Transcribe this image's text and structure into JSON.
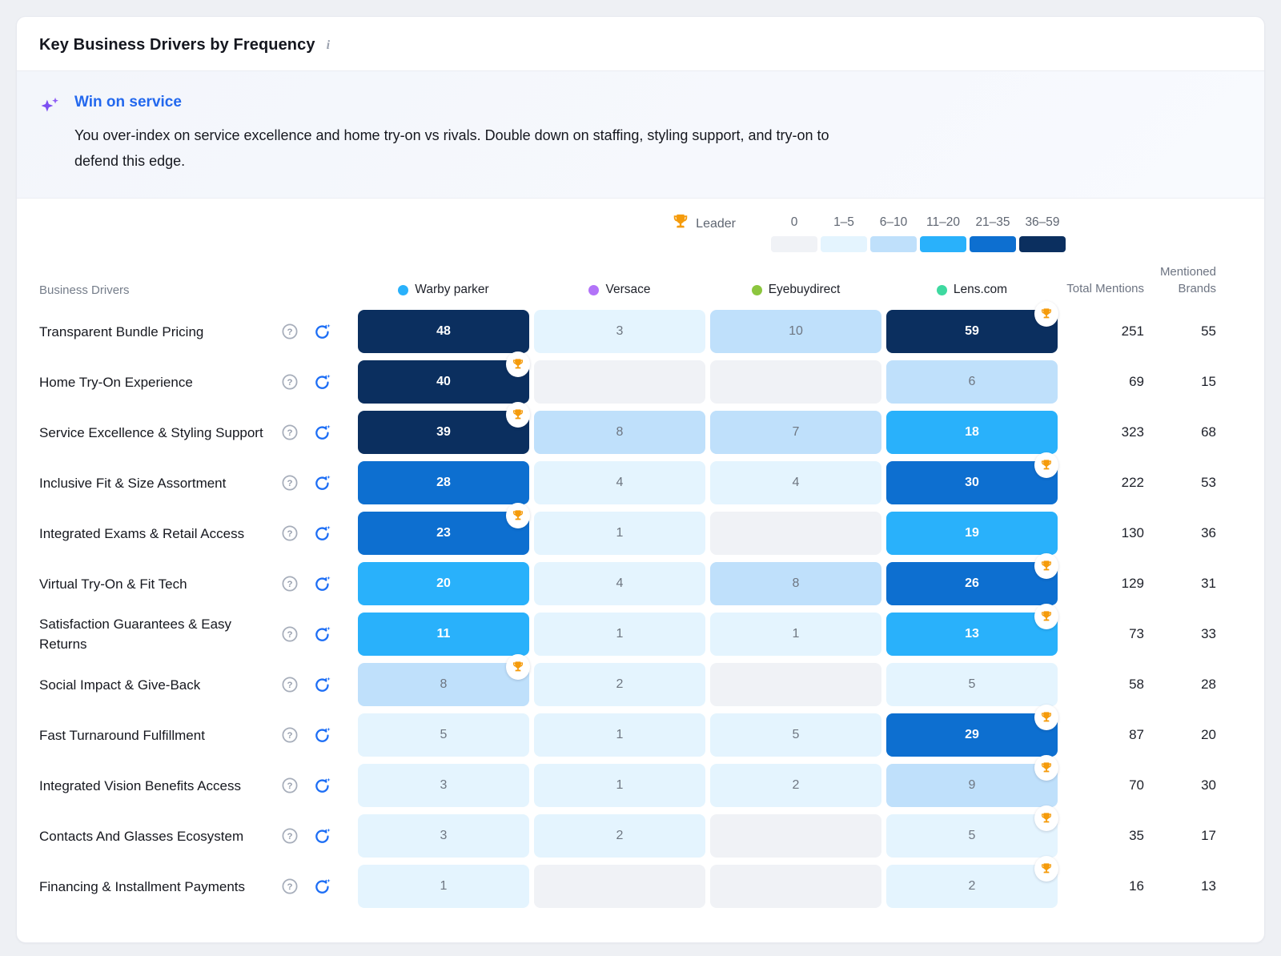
{
  "card": {
    "title": "Key Business Drivers by Frequency"
  },
  "insight": {
    "title": "Win on service",
    "description": "You over-index on service excellence and home try-on vs rivals. Double down on staffing, styling support, and try-on to defend this edge."
  },
  "legend": {
    "leader_label": "Leader",
    "trophy_color": "#f59b0b",
    "bins": [
      {
        "label": "0",
        "min": 0,
        "max": 0,
        "color": "#f0f2f6"
      },
      {
        "label": "1–5",
        "min": 1,
        "max": 5,
        "color": "#e4f4fe"
      },
      {
        "label": "6–10",
        "min": 6,
        "max": 10,
        "color": "#bfe0fb"
      },
      {
        "label": "11–20",
        "min": 11,
        "max": 20,
        "color": "#29b1fb"
      },
      {
        "label": "21–35",
        "min": 21,
        "max": 35,
        "color": "#0d6fd0"
      },
      {
        "label": "36–59",
        "min": 36,
        "max": 59,
        "color": "#0b2f5f"
      }
    ]
  },
  "chart_data": {
    "type": "heatmap",
    "title": "Key Business Drivers by Frequency",
    "drivers_header": "Business Drivers",
    "total_header": "Total Mentions",
    "mentioned_header": "Mentioned Brands",
    "brands": [
      {
        "name": "Warby parker",
        "dot_color": "#29b1fb"
      },
      {
        "name": "Versace",
        "dot_color": "#b273f8"
      },
      {
        "name": "Eyebuydirect",
        "dot_color": "#8cc63e"
      },
      {
        "name": "Lens.com",
        "dot_color": "#3ed9a0"
      }
    ],
    "rows": [
      {
        "driver": "Transparent Bundle Pricing",
        "values": [
          48,
          3,
          10,
          59
        ],
        "leader_index": 3,
        "total_mentions": 251,
        "mentioned_brands": 55
      },
      {
        "driver": "Home Try-On Experience",
        "values": [
          40,
          null,
          null,
          6
        ],
        "leader_index": 0,
        "total_mentions": 69,
        "mentioned_brands": 15
      },
      {
        "driver": "Service Excellence & Styling Support",
        "values": [
          39,
          8,
          7,
          18
        ],
        "leader_index": 0,
        "total_mentions": 323,
        "mentioned_brands": 68
      },
      {
        "driver": "Inclusive Fit & Size Assortment",
        "values": [
          28,
          4,
          4,
          30
        ],
        "leader_index": 3,
        "total_mentions": 222,
        "mentioned_brands": 53
      },
      {
        "driver": "Integrated Exams & Retail Access",
        "values": [
          23,
          1,
          null,
          19
        ],
        "leader_index": 0,
        "total_mentions": 130,
        "mentioned_brands": 36
      },
      {
        "driver": "Virtual Try-On & Fit Tech",
        "values": [
          20,
          4,
          8,
          26
        ],
        "leader_index": 3,
        "total_mentions": 129,
        "mentioned_brands": 31
      },
      {
        "driver": "Satisfaction Guarantees & Easy Returns",
        "values": [
          11,
          1,
          1,
          13
        ],
        "leader_index": 3,
        "total_mentions": 73,
        "mentioned_brands": 33
      },
      {
        "driver": "Social Impact & Give-Back",
        "values": [
          8,
          2,
          null,
          5
        ],
        "leader_index": 0,
        "total_mentions": 58,
        "mentioned_brands": 28
      },
      {
        "driver": "Fast Turnaround Fulfillment",
        "values": [
          5,
          1,
          5,
          29
        ],
        "leader_index": 3,
        "total_mentions": 87,
        "mentioned_brands": 20
      },
      {
        "driver": "Integrated Vision Benefits Access",
        "values": [
          3,
          1,
          2,
          9
        ],
        "leader_index": 3,
        "total_mentions": 70,
        "mentioned_brands": 30
      },
      {
        "driver": "Contacts And Glasses Ecosystem",
        "values": [
          3,
          2,
          null,
          5
        ],
        "leader_index": 3,
        "total_mentions": 35,
        "mentioned_brands": 17
      },
      {
        "driver": "Financing & Installment Payments",
        "values": [
          1,
          null,
          null,
          2
        ],
        "leader_index": 3,
        "total_mentions": 16,
        "mentioned_brands": 13
      }
    ]
  }
}
